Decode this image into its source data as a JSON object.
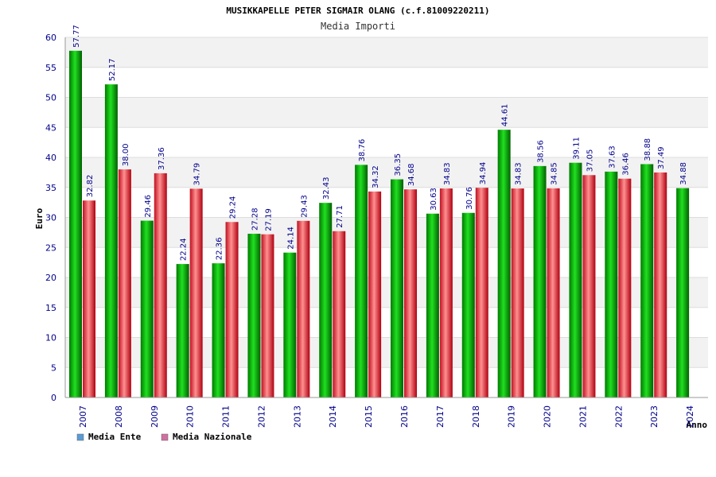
{
  "chart_data": {
    "type": "bar",
    "title": "MUSIKKAPELLE PETER SIGMAIR OLANG (c.f.81009220211)",
    "subtitle": "Media Importi",
    "ylabel": "Euro",
    "xlabel": "Anno",
    "ylim": [
      0,
      60
    ],
    "yticks": [
      0,
      5,
      10,
      15,
      20,
      25,
      30,
      35,
      40,
      45,
      50,
      55,
      60
    ],
    "grid": true,
    "legend_position": "bottom-left",
    "categories": [
      "2007",
      "2008",
      "2009",
      "2010",
      "2011",
      "2012",
      "2013",
      "2014",
      "2015",
      "2016",
      "2017",
      "2018",
      "2019",
      "2020",
      "2021",
      "2022",
      "2023",
      "2024"
    ],
    "series": [
      {
        "name": "Media Ente",
        "legend_color": "#5b9bd5",
        "bar_color": "#00a000",
        "values": [
          57.77,
          52.17,
          29.46,
          22.24,
          22.36,
          27.28,
          24.14,
          32.43,
          38.76,
          36.35,
          30.63,
          30.76,
          44.61,
          38.56,
          39.11,
          37.63,
          38.88,
          34.88
        ],
        "labels": [
          "57.77",
          "52.17",
          "29.46",
          "22.24",
          "22.36",
          "27.28",
          "24.14",
          "32.43",
          "38.76",
          "36.35",
          "30.63",
          "30.76",
          "44.61",
          "38.56",
          "39.11",
          "37.63",
          "38.88",
          "34.88"
        ]
      },
      {
        "name": "Media Nazionale",
        "legend_color": "#d070a0",
        "bar_color": "#e02030",
        "values": [
          32.82,
          38.0,
          37.36,
          34.79,
          29.24,
          27.19,
          29.43,
          27.71,
          34.32,
          34.68,
          34.83,
          34.94,
          34.83,
          34.85,
          37.05,
          36.46,
          37.49,
          null
        ],
        "labels": [
          "32.82",
          "38.00",
          "37.36",
          "34.79",
          "29.24",
          "27.19",
          "29.43",
          "27.71",
          "34.32",
          "34.68",
          "34.83",
          "34.94",
          "34.83",
          "34.85",
          "37.05",
          "36.46",
          "37.49",
          ""
        ]
      }
    ]
  }
}
